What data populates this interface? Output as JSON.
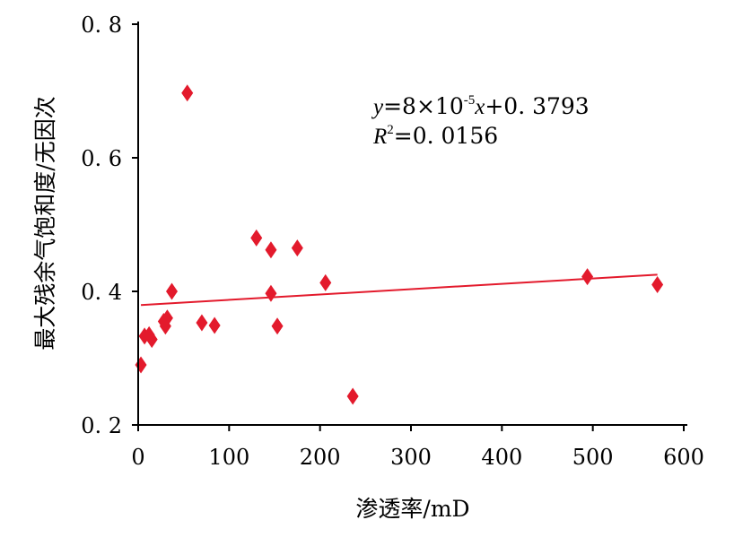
{
  "chart_data": {
    "type": "scatter",
    "title": "",
    "xlabel": "渗透率/mD",
    "ylabel": "最大残余气饱和度/无因次",
    "xlim": [
      0,
      600
    ],
    "ylim": [
      0.2,
      0.8
    ],
    "xticks": [
      "0",
      "100",
      "200",
      "300",
      "400",
      "500",
      "600"
    ],
    "yticks": [
      "0. 2",
      "0. 4",
      "0. 6",
      "0. 8"
    ],
    "xtick_values": [
      0,
      100,
      200,
      300,
      400,
      500,
      600
    ],
    "ytick_values": [
      0.2,
      0.4,
      0.6,
      0.8
    ],
    "grid": false,
    "marker_color": "#e31a2c",
    "line_color": "#e31a2c",
    "points": [
      {
        "x": 3,
        "y": 0.29
      },
      {
        "x": 7,
        "y": 0.333
      },
      {
        "x": 12,
        "y": 0.335
      },
      {
        "x": 15,
        "y": 0.328
      },
      {
        "x": 28,
        "y": 0.355
      },
      {
        "x": 30,
        "y": 0.348
      },
      {
        "x": 32,
        "y": 0.36
      },
      {
        "x": 37,
        "y": 0.4
      },
      {
        "x": 54,
        "y": 0.697
      },
      {
        "x": 70,
        "y": 0.353
      },
      {
        "x": 84,
        "y": 0.349
      },
      {
        "x": 130,
        "y": 0.48
      },
      {
        "x": 146,
        "y": 0.462
      },
      {
        "x": 146,
        "y": 0.397
      },
      {
        "x": 153,
        "y": 0.348
      },
      {
        "x": 175,
        "y": 0.465
      },
      {
        "x": 206,
        "y": 0.413
      },
      {
        "x": 236,
        "y": 0.243
      },
      {
        "x": 494,
        "y": 0.422
      },
      {
        "x": 571,
        "y": 0.41
      }
    ],
    "trendline": {
      "slope": 8e-05,
      "intercept": 0.3793,
      "x_range": [
        3,
        571
      ],
      "equation": {
        "y_var": "y",
        "eq_mid": "=8×10",
        "exponent": "-5",
        "x_var": "x",
        "eq_tail": "+0. 3793",
        "r_var": "R",
        "r_exp": "2",
        "r_value": "=0. 0156"
      }
    }
  }
}
